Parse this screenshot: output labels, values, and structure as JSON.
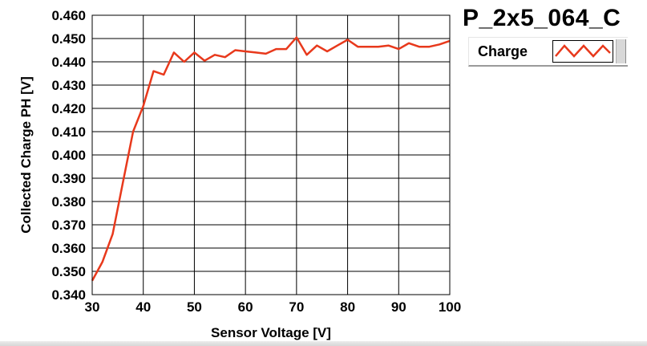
{
  "colors": {
    "series": "#e8391c",
    "grid": "#000000",
    "background": "#ffffff"
  },
  "legend": {
    "label": "Charge",
    "placement": "top-right"
  },
  "chart_data": {
    "type": "line",
    "title": "P_2x5_064_C",
    "xlabel": "Sensor Voltage [V]",
    "ylabel": "Collected Charge PH [V]",
    "xlim": [
      30,
      100
    ],
    "ylim": [
      0.34,
      0.46
    ],
    "grid": true,
    "x_ticks": [
      30,
      40,
      50,
      60,
      70,
      80,
      90,
      100
    ],
    "y_ticks": [
      "0.340",
      "0.350",
      "0.360",
      "0.370",
      "0.380",
      "0.390",
      "0.400",
      "0.410",
      "0.420",
      "0.430",
      "0.440",
      "0.450",
      "0.460"
    ],
    "series": [
      {
        "name": "Charge",
        "x": [
          30,
          32,
          34,
          36,
          38,
          40,
          42,
          44,
          46,
          48,
          50,
          52,
          54,
          56,
          58,
          60,
          62,
          64,
          66,
          68,
          70,
          72,
          74,
          76,
          78,
          80,
          82,
          84,
          86,
          88,
          90,
          92,
          94,
          96,
          98,
          100
        ],
        "y": [
          0.346,
          0.354,
          0.366,
          0.388,
          0.41,
          0.421,
          0.436,
          0.4345,
          0.444,
          0.44,
          0.444,
          0.4405,
          0.443,
          0.442,
          0.445,
          0.4445,
          0.444,
          0.4435,
          0.4455,
          0.4455,
          0.4505,
          0.443,
          0.447,
          0.4445,
          0.447,
          0.4495,
          0.4465,
          0.4465,
          0.4465,
          0.447,
          0.4455,
          0.448,
          0.4465,
          0.4465,
          0.4475,
          0.449
        ]
      }
    ]
  }
}
